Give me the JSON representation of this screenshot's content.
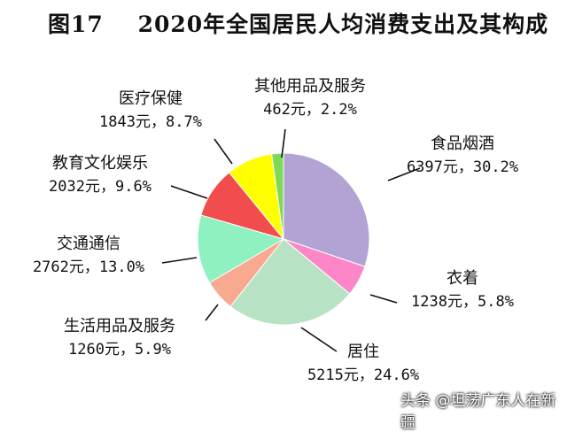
{
  "chart_data": {
    "type": "pie",
    "title": "图17    2020年全国居民人均消费支出及其构成",
    "slices": [
      {
        "label": "食品烟酒",
        "amount": 6397,
        "value_text": "6397元，30.2%",
        "percent": 30.2,
        "color": "#b3a3d4"
      },
      {
        "label": "衣着",
        "amount": 1238,
        "value_text": "1238元，5.8%",
        "percent": 5.8,
        "color": "#fc86c8"
      },
      {
        "label": "居住",
        "amount": 5215,
        "value_text": "5215元，24.6%",
        "percent": 24.6,
        "color": "#b7e3c4"
      },
      {
        "label": "生活用品及服务",
        "amount": 1260,
        "value_text": "1260元，5.9%",
        "percent": 5.9,
        "color": "#f9a98f"
      },
      {
        "label": "交通通信",
        "amount": 2762,
        "value_text": "2762元，13.0%",
        "percent": 13.0,
        "color": "#8ff0c0"
      },
      {
        "label": "教育文化娱乐",
        "amount": 2032,
        "value_text": "2032元，9.6%",
        "percent": 9.6,
        "color": "#f24d4d"
      },
      {
        "label": "医疗保健",
        "amount": 1843,
        "value_text": "1843元，8.7%",
        "percent": 8.7,
        "color": "#ffff00"
      },
      {
        "label": "其他用品及服务",
        "amount": 462,
        "value_text": "462元，2.2%",
        "percent": 2.2,
        "color": "#7ed957"
      }
    ]
  },
  "watermark": "头条 @坦荡广东人在新疆"
}
